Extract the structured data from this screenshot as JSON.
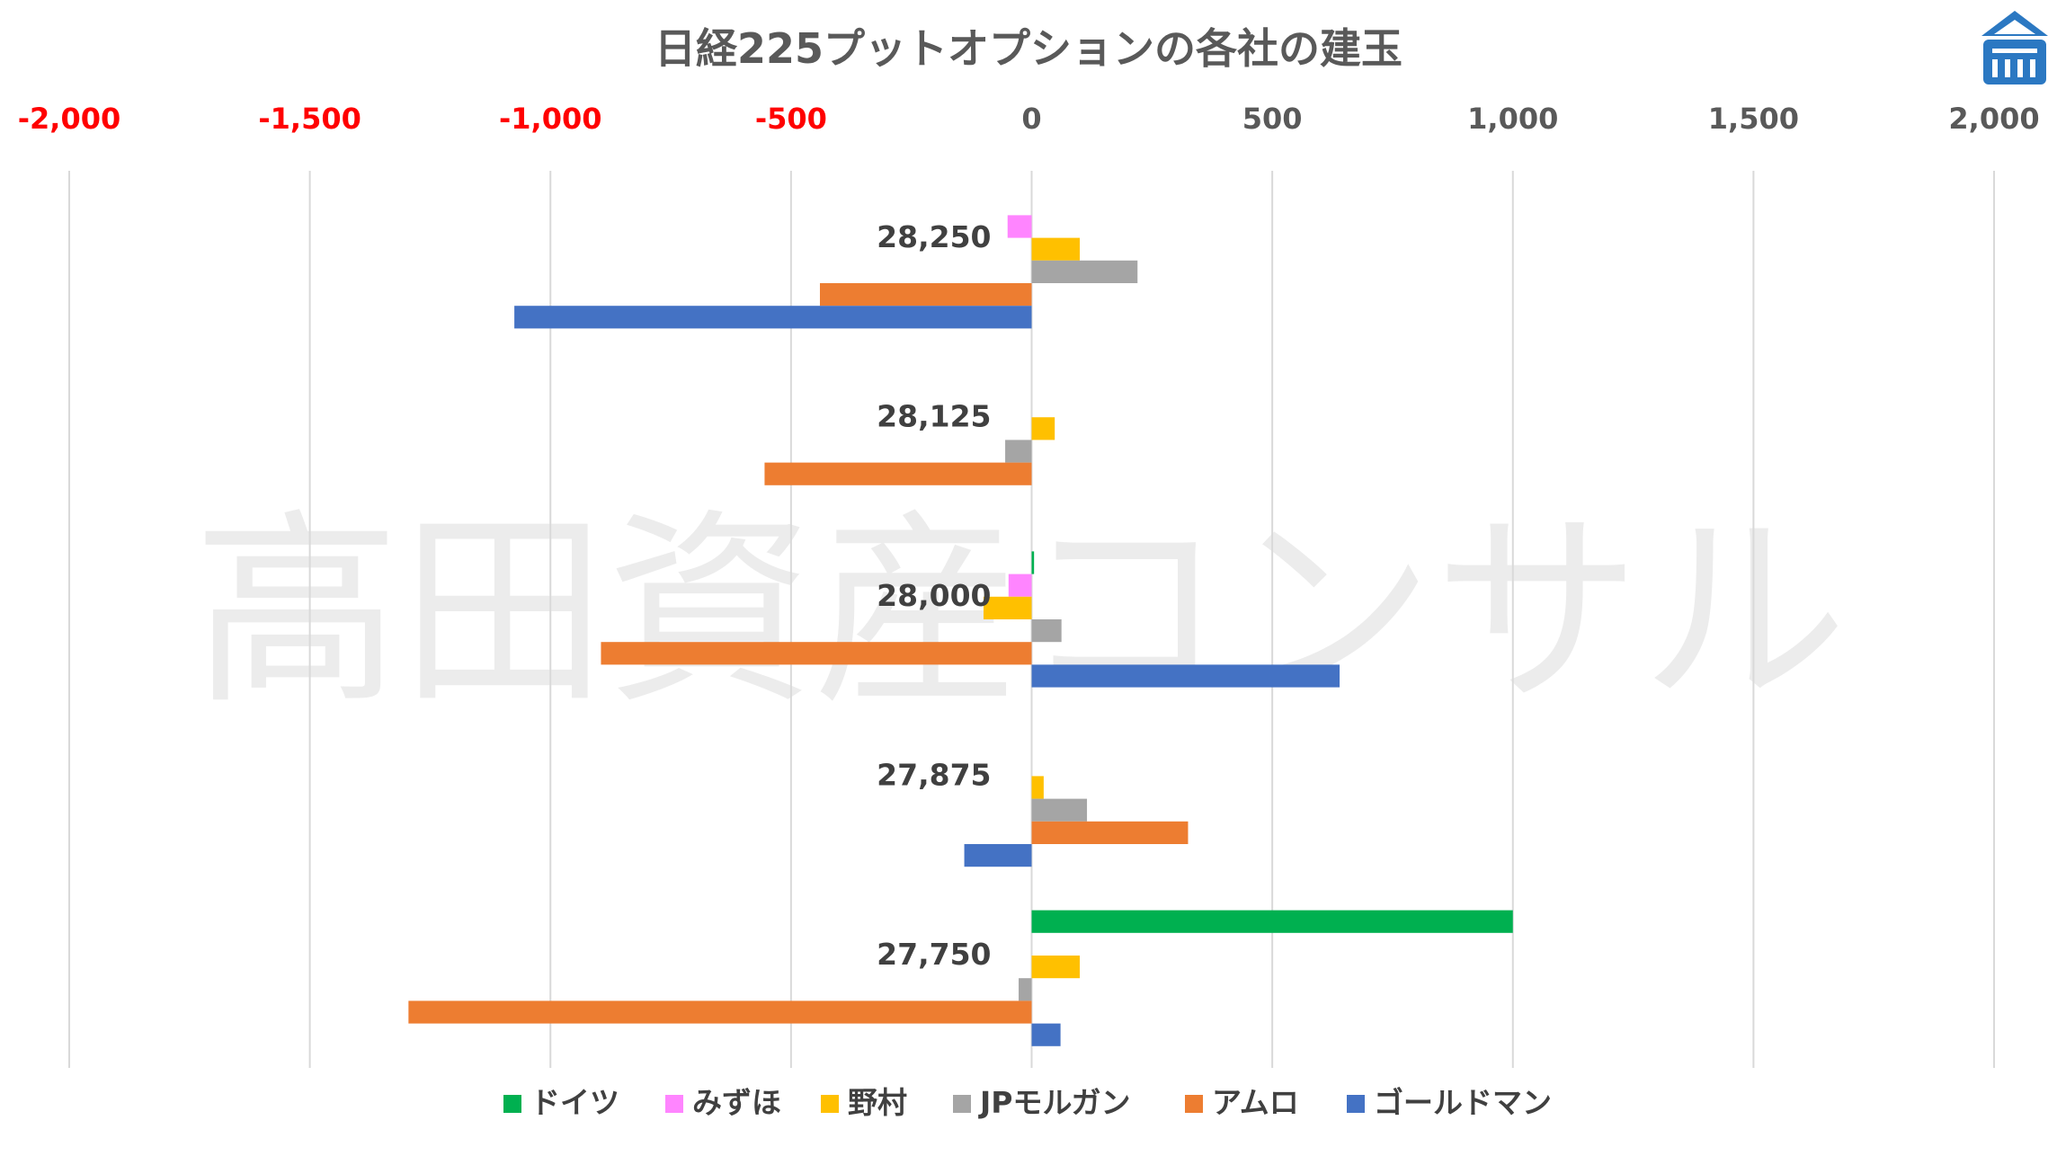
{
  "chart_data": {
    "type": "bar",
    "orientation": "horizontal",
    "title": "日経225プットオプションの各社の建玉",
    "xlim": [
      -2000,
      2000
    ],
    "x_ticks": [
      -2000,
      -1500,
      -1000,
      -500,
      0,
      500,
      1000,
      1500,
      2000
    ],
    "x_tick_labels": [
      "-2,000",
      "-1,500",
      "-1,000",
      "-500",
      "0",
      "500",
      "1,000",
      "1,500",
      "2,000"
    ],
    "x_axis_position": "top",
    "negative_tick_color": "#ff0000",
    "positive_tick_color": "#595959",
    "grid": true,
    "legend_position": "bottom",
    "categories": [
      "28,250",
      "28,125",
      "28,000",
      "27,875",
      "27,750"
    ],
    "series": [
      {
        "name": "ドイツ",
        "color": "#00b050",
        "values": [
          null,
          null,
          5,
          null,
          1000
        ]
      },
      {
        "name": "みずほ",
        "color": "#ff85ff",
        "values": [
          -50,
          null,
          -48,
          null,
          null
        ]
      },
      {
        "name": "野村",
        "color": "#ffc000",
        "values": [
          100,
          48,
          -100,
          25,
          100
        ]
      },
      {
        "name": "JPモルガン",
        "color": "#a5a5a5",
        "values": [
          220,
          -55,
          62,
          115,
          -27
        ]
      },
      {
        "name": "アムロ",
        "color": "#ed7d31",
        "values": [
          -440,
          -555,
          -895,
          325,
          -1295
        ]
      },
      {
        "name": "ゴールドマン",
        "color": "#4472c4",
        "values": [
          -1075,
          null,
          640,
          -140,
          60
        ]
      }
    ],
    "watermark": "高田資産コンサル",
    "logo_icon": "building-logo-icon"
  }
}
